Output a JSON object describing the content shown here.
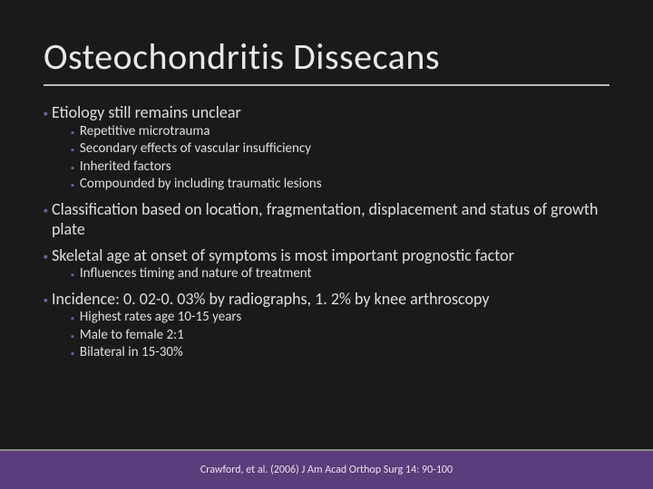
{
  "slide": {
    "title": "Osteochondritis Dissecans",
    "title_color": "#e8e8e8",
    "title_fontsize": 40,
    "background_color": "#1a1a1a",
    "rule_color": "#bbbbbb",
    "bullet_color": "#7a5ca0",
    "text_color": "#dddddd",
    "band_color": "#5a3d7a",
    "band_border_color": "#888888",
    "citation": "Crawford, et al. (2006) J Am Acad Orthop Surg 14: 90-100",
    "citation_color": "#e8e0f0",
    "citation_fontsize": 12,
    "lvl1_fontsize": 18,
    "lvl2_fontsize": 15,
    "points": {
      "etiology": {
        "text": "Etiology still remains unclear",
        "sub": [
          "Repetitive microtrauma",
          "Secondary effects of vascular insufficiency",
          "Inherited factors",
          "Compounded by including traumatic lesions"
        ]
      },
      "classification": {
        "text": "Classification based on location, fragmentation, displacement and status of growth plate"
      },
      "skeletal": {
        "text": "Skeletal age at onset of symptoms is most important prognostic factor",
        "sub": [
          "Influences timing and nature of treatment"
        ]
      },
      "incidence": {
        "text": "Incidence: 0. 02-0. 03% by radiographs, 1. 2% by knee arthroscopy",
        "sub": [
          "Highest rates age 10-15 years",
          "Male to female 2:1",
          "Bilateral in 15-30%"
        ]
      }
    }
  }
}
